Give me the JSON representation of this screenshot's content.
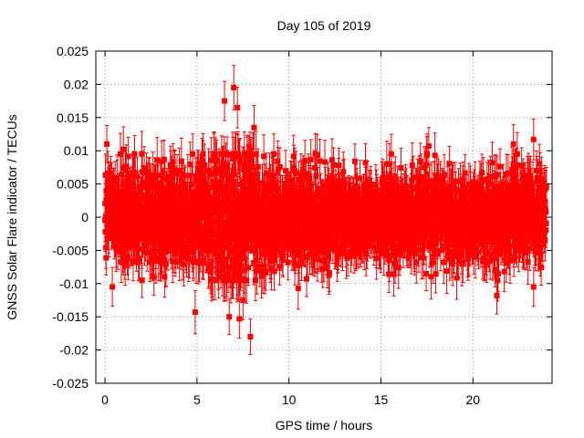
{
  "chart_data": {
    "type": "scatter",
    "title": "Day 105 of 2019",
    "xlabel": "GPS time / hours",
    "ylabel": "GNSS Solar Flare indicator / TECUs",
    "xlim": [
      -0.5,
      24.3
    ],
    "ylim": [
      -0.025,
      0.025
    ],
    "grid": true,
    "legend": "none",
    "x_ticks": [
      0,
      5,
      10,
      15,
      20
    ],
    "x_tick_labels": [
      "0",
      "5",
      "10",
      "15",
      "20"
    ],
    "y_ticks": [
      -0.025,
      -0.02,
      -0.015,
      -0.01,
      -0.005,
      0,
      0.005,
      0.01,
      0.015,
      0.02,
      0.025
    ],
    "y_tick_labels": [
      "-0.025",
      "-0.02",
      "-0.015",
      "-0.01",
      "-0.005",
      "0",
      "0.005",
      "0.01",
      "0.015",
      "0.02",
      "0.025"
    ],
    "series": [
      {
        "name": "solar flare indicator",
        "color": "#ff0000",
        "marker": "square",
        "error_bars": true,
        "typical_error": 0.003,
        "noise_envelope": [
          {
            "x": 0,
            "std": 0.0036
          },
          {
            "x": 5,
            "std": 0.004
          },
          {
            "x": 6.3,
            "std": 0.005
          },
          {
            "x": 7,
            "std": 0.0068
          },
          {
            "x": 7.6,
            "std": 0.006
          },
          {
            "x": 8.5,
            "std": 0.004
          },
          {
            "x": 12,
            "std": 0.0033
          },
          {
            "x": 18,
            "std": 0.0032
          },
          {
            "x": 24,
            "std": 0.0034
          }
        ],
        "notable_points": [
          {
            "x": 0.1,
            "y": 0.011
          },
          {
            "x": 0.4,
            "y": -0.0105
          },
          {
            "x": 1.0,
            "y": 0.0102
          },
          {
            "x": 4.9,
            "y": -0.0143
          },
          {
            "x": 6.5,
            "y": 0.0175
          },
          {
            "x": 6.75,
            "y": -0.015
          },
          {
            "x": 7.0,
            "y": 0.0195
          },
          {
            "x": 7.2,
            "y": 0.0165
          },
          {
            "x": 7.3,
            "y": -0.0153
          },
          {
            "x": 7.5,
            "y": -0.0125
          },
          {
            "x": 7.9,
            "y": -0.018
          },
          {
            "x": 8.1,
            "y": 0.0135
          },
          {
            "x": 10.5,
            "y": -0.0107
          },
          {
            "x": 17.6,
            "y": 0.0107
          },
          {
            "x": 21.3,
            "y": -0.0118
          },
          {
            "x": 22.2,
            "y": 0.011
          },
          {
            "x": 23.3,
            "y": 0.0117
          },
          {
            "x": 23.3,
            "y": -0.0105
          }
        ]
      }
    ]
  }
}
